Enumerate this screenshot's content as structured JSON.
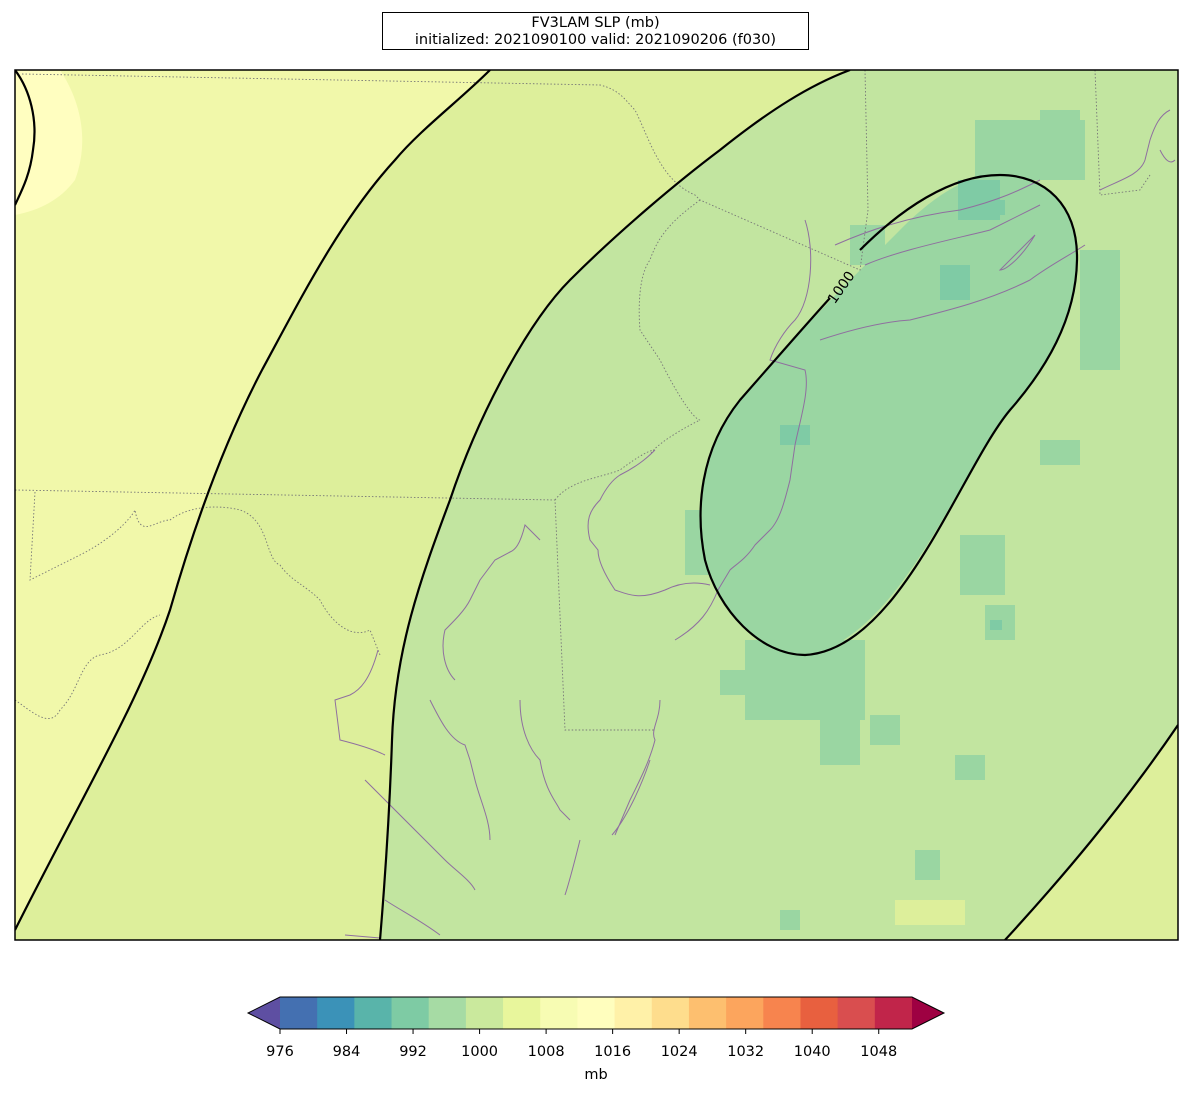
{
  "title": {
    "line1": "FV3LAM SLP (mb)",
    "line2": "initialized: 2021090100 valid: 2021090206 (f030)"
  },
  "contour_label": "1000",
  "colorbar": {
    "unit_label": "mb",
    "tick_labels": [
      "976",
      "984",
      "992",
      "1000",
      "1008",
      "1016",
      "1024",
      "1032",
      "1040",
      "1048"
    ],
    "levels": [
      976,
      980,
      984,
      988,
      992,
      996,
      1000,
      1004,
      1008,
      1012,
      1016,
      1020,
      1024,
      1028,
      1032,
      1036,
      1040,
      1044,
      1048,
      1052
    ],
    "colors": [
      "#5e4fa2",
      "#4470b1",
      "#3b92b8",
      "#59b4aa",
      "#7ecba4",
      "#a6dba4",
      "#cae99d",
      "#e8f69c",
      "#f7fcb3",
      "#fffebe",
      "#fff1a8",
      "#fedd8d",
      "#fdbf6f",
      "#fca55d",
      "#f7844e",
      "#e8603f",
      "#d94e4f",
      "#c1254a",
      "#9e0142"
    ],
    "under_color": "#5e4fa2",
    "over_color": "#9e0142"
  },
  "map_fill_colors": {
    "band_1012": "#f1f8aa",
    "band_1008": "#ddef9b",
    "band_1004": "#c2e5a0",
    "band_1000": "#9ad6a2",
    "band_996": "#7fcba5",
    "band_1016": "#fffec0",
    "state_border": "#777777",
    "coastline": "#8f6f9f",
    "contour": "#000000"
  }
}
